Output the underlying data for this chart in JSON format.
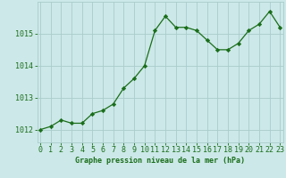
{
  "x": [
    0,
    1,
    2,
    3,
    4,
    5,
    6,
    7,
    8,
    9,
    10,
    11,
    12,
    13,
    14,
    15,
    16,
    17,
    18,
    19,
    20,
    21,
    22,
    23
  ],
  "y": [
    1012.0,
    1012.1,
    1012.3,
    1012.2,
    1012.2,
    1012.5,
    1012.6,
    1012.8,
    1013.3,
    1013.6,
    1014.0,
    1015.1,
    1015.55,
    1015.2,
    1015.2,
    1015.1,
    1014.8,
    1014.5,
    1014.5,
    1014.7,
    1015.1,
    1015.3,
    1015.7,
    1015.2
  ],
  "line_color": "#1a6e1a",
  "marker_color": "#1a6e1a",
  "bg_color": "#cce8e8",
  "grid_color": "#aacccc",
  "bottom_label": "Graphe pression niveau de la mer (hPa)",
  "xlabel_ticks": [
    "0",
    "1",
    "2",
    "3",
    "4",
    "5",
    "6",
    "7",
    "8",
    "9",
    "10",
    "11",
    "12",
    "13",
    "14",
    "15",
    "16",
    "17",
    "18",
    "19",
    "20",
    "21",
    "22",
    "23"
  ],
  "yticks": [
    1012,
    1013,
    1014,
    1015
  ],
  "ylim": [
    1011.6,
    1016.0
  ],
  "xlim": [
    -0.3,
    23.3
  ],
  "title_color": "#1a6e1a",
  "tick_color": "#1a6e1a",
  "label_fontsize": 6.0,
  "tick_fontsize": 6.0
}
